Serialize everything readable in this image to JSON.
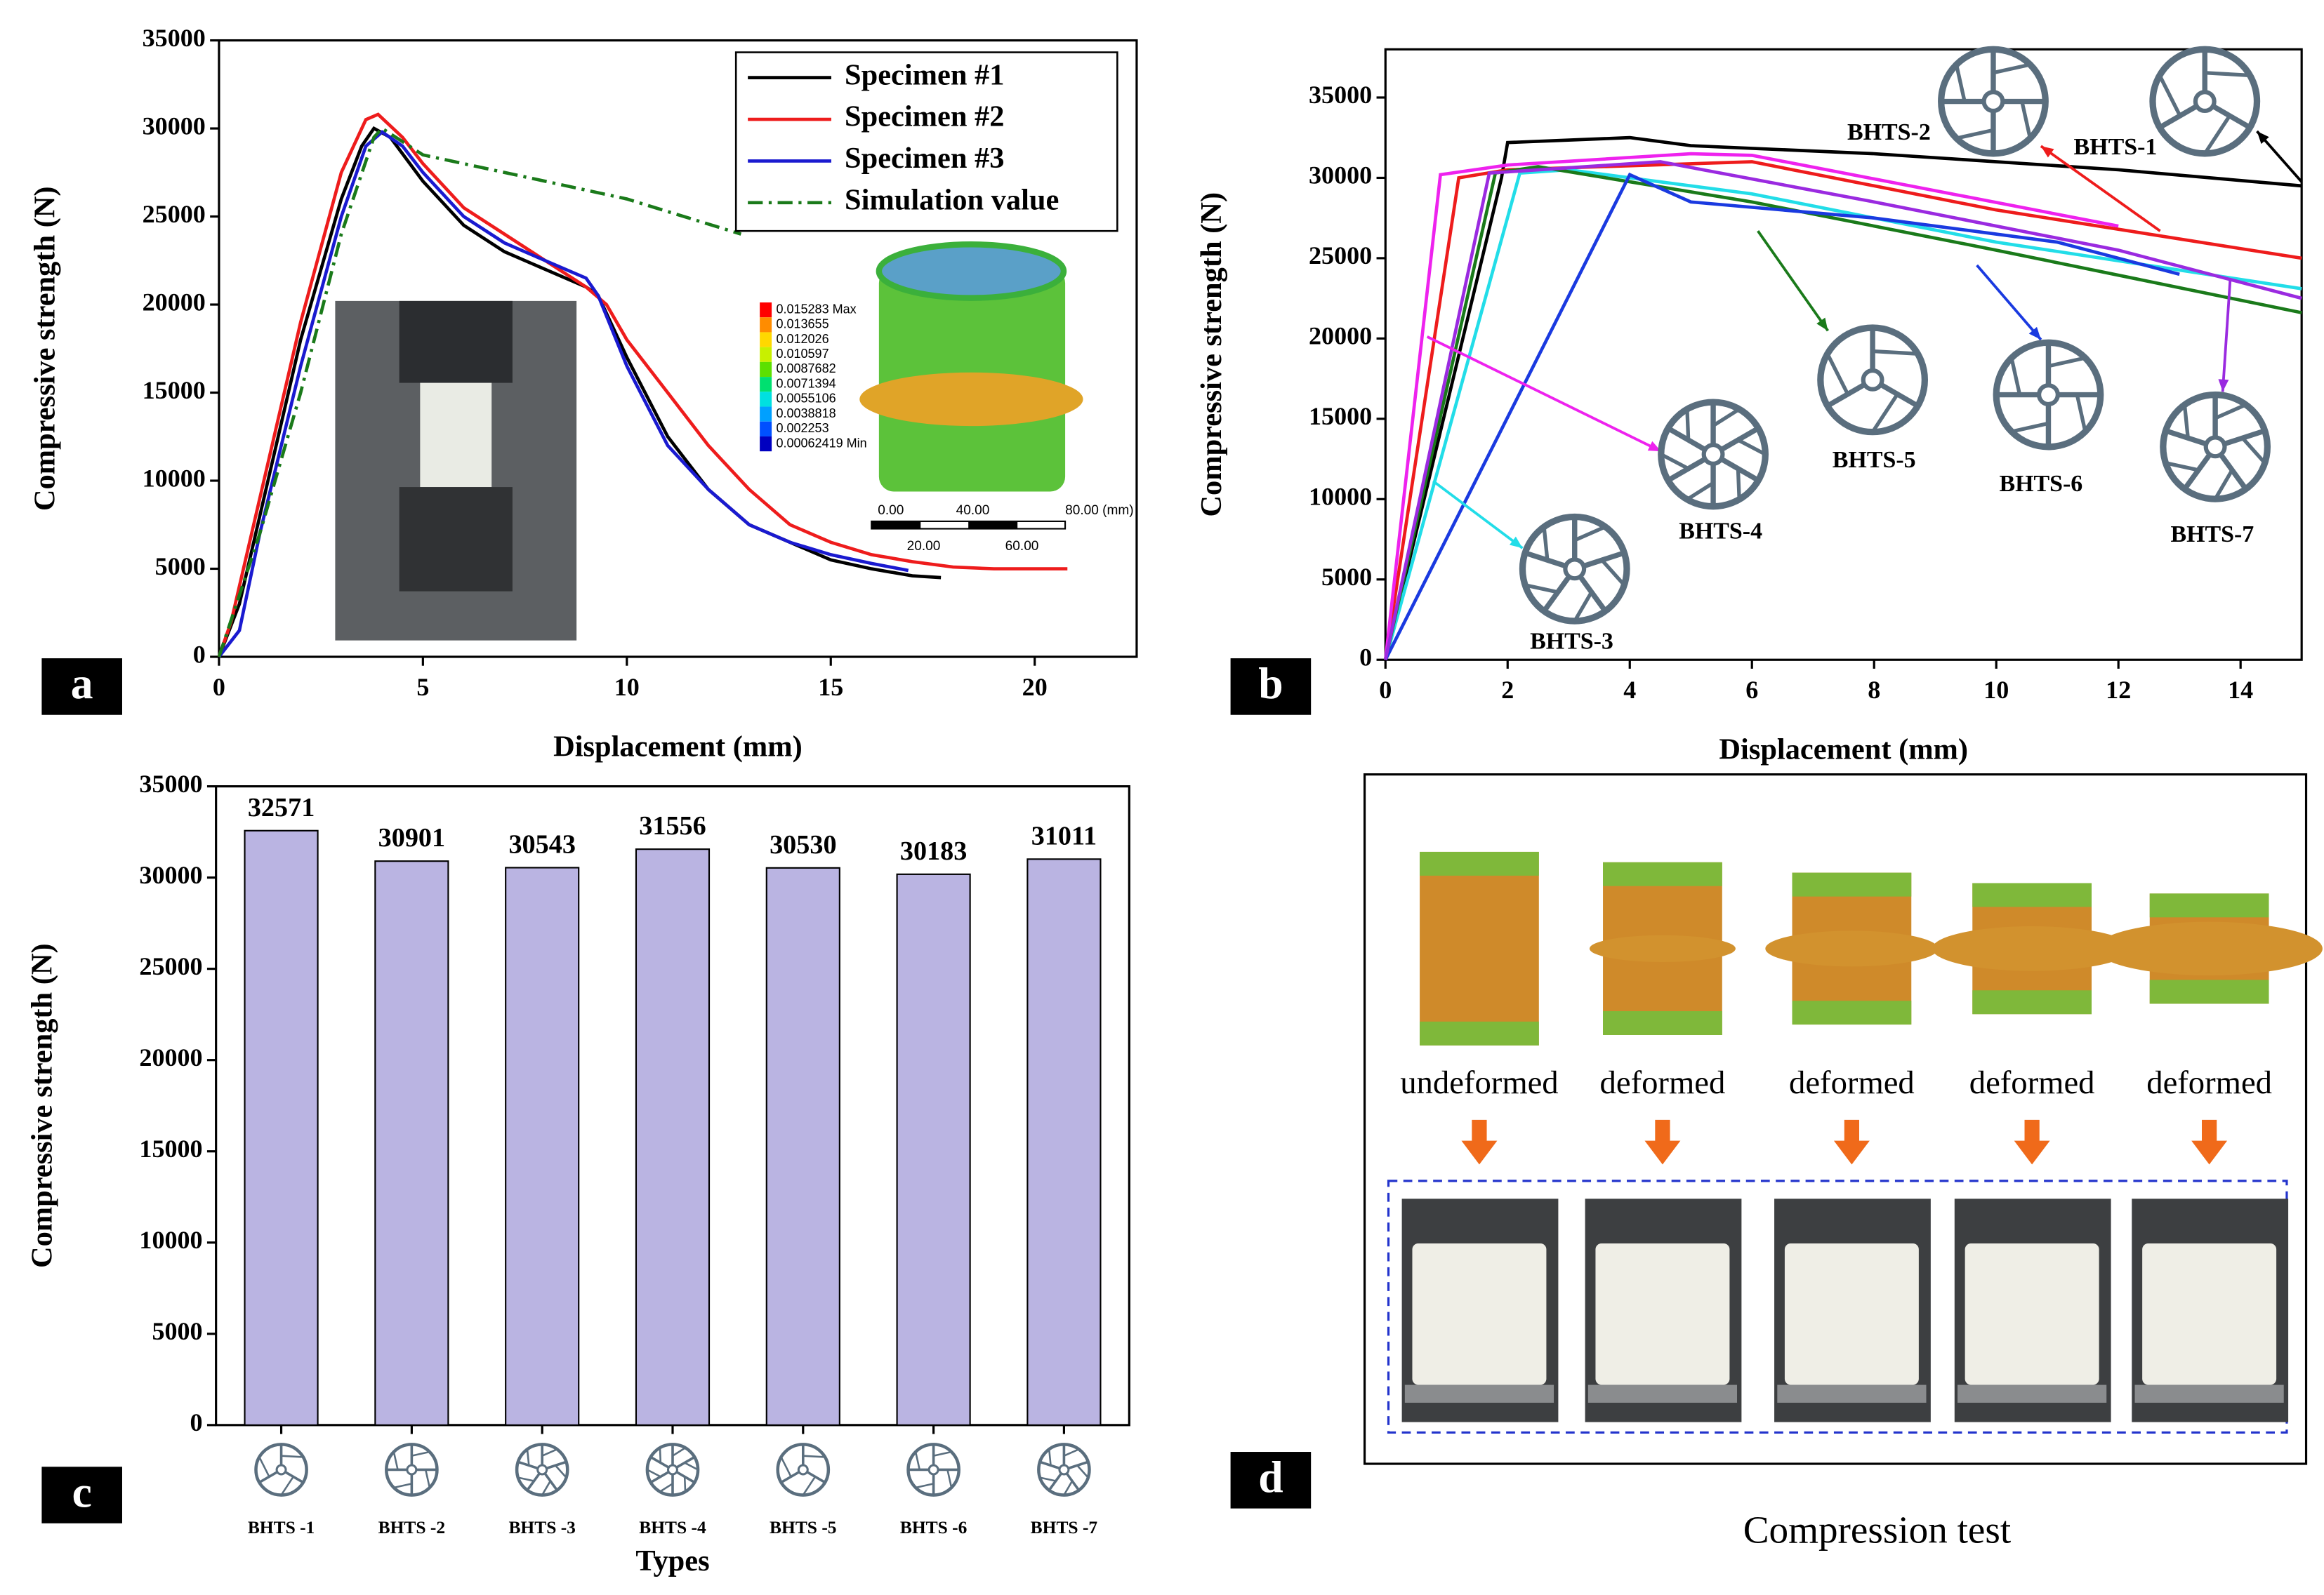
{
  "chart_data": [
    {
      "type": "line",
      "panel": "a",
      "ylabel": "Compressive strength (N)",
      "xlabel": "Displacement (mm)",
      "xlim": [
        0,
        22.5
      ],
      "ylim": [
        0,
        35000
      ],
      "xticks": [
        0,
        5,
        10,
        15,
        20
      ],
      "yticks": [
        0,
        5000,
        10000,
        15000,
        20000,
        25000,
        30000,
        35000
      ],
      "series": [
        {
          "name": "Specimen #1",
          "color": "#000000",
          "x": [
            0,
            0.5,
            1,
            2,
            3,
            3.5,
            3.8,
            4.2,
            5,
            6,
            7,
            8,
            9,
            9.3,
            10,
            11,
            12,
            13,
            14,
            15,
            16,
            17,
            17.7
          ],
          "values": [
            0,
            3000,
            8000,
            18000,
            26000,
            29000,
            30000,
            29500,
            27000,
            24500,
            23000,
            22000,
            21000,
            20500,
            17000,
            12500,
            9500,
            7500,
            6500,
            5500,
            5000,
            4600,
            4500
          ]
        },
        {
          "name": "Specimen #2",
          "color": "#ee1c1c",
          "x": [
            0,
            0.3,
            1,
            2,
            3,
            3.6,
            3.9,
            4.5,
            5,
            6,
            7,
            8,
            9,
            9.5,
            10,
            11,
            12,
            13,
            14,
            15,
            16,
            17,
            18,
            19,
            20,
            20.8
          ],
          "values": [
            0,
            2000,
            9000,
            19000,
            27500,
            30500,
            30800,
            29500,
            28000,
            25500,
            24000,
            22500,
            21000,
            20000,
            18000,
            15000,
            12000,
            9500,
            7500,
            6500,
            5800,
            5400,
            5100,
            5000,
            5000,
            5000
          ]
        },
        {
          "name": "Specimen #3",
          "color": "#1a1ad0",
          "x": [
            0,
            0.5,
            1,
            2,
            3,
            3.6,
            4,
            4.5,
            5,
            6,
            7,
            8,
            9,
            9.3,
            10,
            11,
            12,
            13,
            14,
            15,
            16,
            16.9
          ],
          "values": [
            0,
            1500,
            7000,
            16500,
            25000,
            29000,
            29800,
            29000,
            27500,
            25000,
            23500,
            22500,
            21500,
            20500,
            16500,
            12000,
            9500,
            7500,
            6500,
            5800,
            5300,
            4900
          ]
        },
        {
          "name": "Simulation value",
          "color": "#1a7a1a",
          "dash": "dashdot",
          "x": [
            0,
            1,
            2,
            3,
            3.8,
            4,
            5,
            8,
            10,
            12.8
          ],
          "values": [
            0,
            7000,
            15000,
            24000,
            29500,
            30000,
            28500,
            27000,
            26000,
            24000
          ]
        }
      ],
      "colorbar_labels": [
        "0.015283 Max",
        "0.013655",
        "0.012026",
        "0.010597",
        "0.0087682",
        "0.0071394",
        "0.0055106",
        "0.0038818",
        "0.002253",
        "0.00062419 Min"
      ],
      "scale_labels": [
        "0.00",
        "40.00",
        "80.00 (mm)",
        "20.00",
        "60.00"
      ]
    },
    {
      "type": "line",
      "panel": "b",
      "ylabel": "Compressive strength (N)",
      "xlabel": "Displacement (mm)",
      "xlim": [
        0,
        15
      ],
      "ylim": [
        0,
        38000
      ],
      "xticks": [
        0,
        2,
        4,
        6,
        8,
        10,
        12,
        14
      ],
      "yticks": [
        0,
        5000,
        10000,
        15000,
        20000,
        25000,
        30000,
        35000
      ],
      "series": [
        {
          "name": "BHTS-1",
          "color": "#000000",
          "x": [
            0,
            1.9,
            2,
            4,
            5,
            8,
            12,
            15
          ],
          "values": [
            0,
            30000,
            32200,
            32500,
            32000,
            31500,
            30500,
            29500
          ]
        },
        {
          "name": "BHTS-2",
          "color": "#ee1c1c",
          "x": [
            0,
            1.2,
            2,
            6,
            10,
            15
          ],
          "values": [
            0,
            30000,
            30500,
            31000,
            28000,
            25000
          ]
        },
        {
          "name": "BHTS-3",
          "color": "#22dde8",
          "x": [
            0,
            2.2,
            3,
            6,
            10,
            15
          ],
          "values": [
            0,
            30300,
            30500,
            29000,
            26000,
            23100
          ]
        },
        {
          "name": "BHTS-4",
          "color": "#ee22ee",
          "x": [
            0,
            0.9,
            2,
            5,
            6,
            12
          ],
          "values": [
            0,
            30200,
            30800,
            31500,
            31400,
            27000
          ]
        },
        {
          "name": "BHTS-5",
          "color": "#1a7a1a",
          "x": [
            0,
            1.8,
            2.5,
            6,
            10,
            15
          ],
          "values": [
            0,
            30300,
            30700,
            28500,
            25500,
            21600
          ]
        },
        {
          "name": "BHTS-6",
          "color": "#1a3ae0",
          "x": [
            0,
            4,
            5,
            8,
            11,
            13
          ],
          "values": [
            0,
            30200,
            28500,
            27500,
            26000,
            24000
          ]
        },
        {
          "name": "BHTS-7",
          "color": "#9a2ae0",
          "x": [
            0,
            1.7,
            4.5,
            8,
            12,
            15
          ],
          "values": [
            0,
            30300,
            31000,
            28500,
            25500,
            22500
          ]
        }
      ]
    },
    {
      "type": "bar",
      "panel": "c",
      "ylabel": "Compressive strength (N)",
      "xlabel": "Types",
      "color": "#bab4e2",
      "categories": [
        "BHTS -1",
        "BHTS -2",
        "BHTS -3",
        "BHTS -4",
        "BHTS -5",
        "BHTS -6",
        "BHTS -7"
      ],
      "values": [
        32571,
        30901,
        30543,
        31556,
        30530,
        30183,
        31011
      ],
      "ylim": [
        0,
        35000
      ],
      "yticks": [
        0,
        5000,
        10000,
        15000,
        20000,
        25000,
        30000,
        35000
      ]
    }
  ],
  "panel_d": {
    "panel": "d",
    "stage_labels": [
      "undeformed",
      "deformed",
      "deformed",
      "deformed",
      "deformed"
    ],
    "caption": "Compression test"
  }
}
